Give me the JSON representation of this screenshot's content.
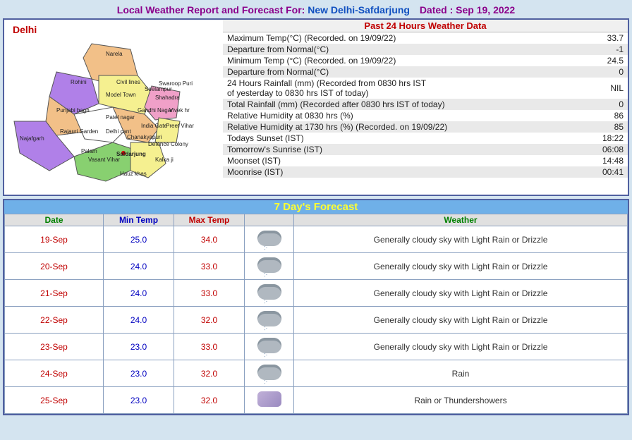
{
  "header": {
    "label": "Local Weather Report and Forecast For: ",
    "location": "New Delhi-Safdarjung",
    "dated_label": "Dated :",
    "date": "Sep 19, 2022"
  },
  "map": {
    "title": "Delhi",
    "colors": {
      "orange": "#f2c088",
      "purple": "#b080e8",
      "yellow": "#f5f090",
      "green": "#88d070",
      "pink": "#f0a0c8",
      "white": "#ffffff"
    },
    "districts": [
      "Narela",
      "Rohini",
      "Civil lines",
      "Seelampur",
      "Swaroop Puri",
      "Shahadra",
      "Model Town",
      "Punjabi bagh",
      "Patel nagar",
      "Gandhi Nagar",
      "Vivek hr",
      "Najafgarh",
      "Rajauri Garden",
      "Delhi cant",
      "India Gate",
      "Preet Vihar",
      "Chanakyapuri",
      "Defence Colony",
      "Palam",
      "Vasant Vihar",
      "Safdarjung",
      "Kalka ji",
      "Hauz khas"
    ]
  },
  "past24": {
    "title": "Past 24 Hours Weather Data",
    "rows": [
      {
        "label": "Maximum Temp(°C) (Recorded. on 19/09/22)",
        "value": "33.7"
      },
      {
        "label": "Departure from Normal(°C)",
        "value": "-1"
      },
      {
        "label": "Minimum Temp (°C) (Recorded. on 19/09/22)",
        "value": "24.5"
      },
      {
        "label": "Departure from Normal(°C)",
        "value": "0"
      },
      {
        "label": "24 Hours Rainfall (mm) (Recorded from 0830 hrs IST\nof yesterday to 0830 hrs IST of today)",
        "value": "NIL"
      },
      {
        "label": "Total Rainfall (mm) (Recorded after 0830 hrs IST of today)",
        "value": "0"
      },
      {
        "label": "Relative Humidity at 0830 hrs (%)",
        "value": "86"
      },
      {
        "label": "Relative Humidity at 1730 hrs (%) (Recorded. on 19/09/22)",
        "value": "85"
      },
      {
        "label": "Todays Sunset (IST)",
        "value": "18:22"
      },
      {
        "label": "Tomorrow's Sunrise (IST)",
        "value": "06:08"
      },
      {
        "label": "Moonset (IST)",
        "value": "14:48"
      },
      {
        "label": "Moonrise (IST)",
        "value": "00:41"
      }
    ]
  },
  "forecast": {
    "title": "7 Day's Forecast",
    "columns": {
      "date": "Date",
      "min": "Min Temp",
      "max": "Max Temp",
      "weather": "Weather"
    },
    "rows": [
      {
        "date": "19-Sep",
        "min": "25.0",
        "max": "34.0",
        "icon": "cloud-rain",
        "weather": "Generally cloudy sky with Light Rain or Drizzle"
      },
      {
        "date": "20-Sep",
        "min": "24.0",
        "max": "33.0",
        "icon": "cloud-rain",
        "weather": "Generally cloudy sky with Light Rain or Drizzle"
      },
      {
        "date": "21-Sep",
        "min": "24.0",
        "max": "33.0",
        "icon": "cloud-rain",
        "weather": "Generally cloudy sky with Light Rain or Drizzle"
      },
      {
        "date": "22-Sep",
        "min": "24.0",
        "max": "32.0",
        "icon": "cloud-rain",
        "weather": "Generally cloudy sky with Light Rain or Drizzle"
      },
      {
        "date": "23-Sep",
        "min": "23.0",
        "max": "33.0",
        "icon": "cloud-rain",
        "weather": "Generally cloudy sky with Light Rain or Drizzle"
      },
      {
        "date": "24-Sep",
        "min": "23.0",
        "max": "32.0",
        "icon": "cloud-rain",
        "weather": "Rain"
      },
      {
        "date": "25-Sep",
        "min": "23.0",
        "max": "32.0",
        "icon": "thunder",
        "weather": "Rain or Thundershowers"
      }
    ]
  },
  "styling": {
    "page_bg": "#d4e4f0",
    "border_color": "#5060a0",
    "fc_title_bg": "#6fb0e8",
    "fc_title_fg": "#ffff30",
    "col_date": "#008000",
    "col_min": "#0000c0",
    "col_max": "#c00000",
    "col_title": "#8b008b"
  }
}
